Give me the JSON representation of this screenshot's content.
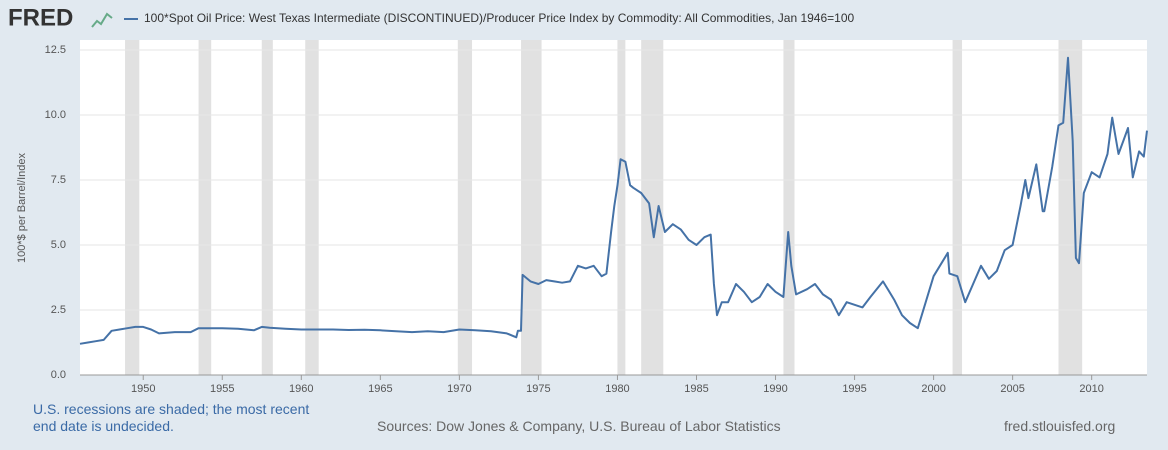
{
  "logo": "FRED",
  "chart_data": {
    "type": "line",
    "title": "100*Spot Oil Price: West Texas Intermediate (DISCONTINUED)/Producer Price Index by Commodity: All Commodities, Jan 1946=100",
    "y_label": "100*$ per Barrel/Index",
    "note": "U.S. recessions are shaded; the most recent end date is undecided.",
    "source": "Sources: Dow Jones & Company, U.S. Bureau of Labor Statistics",
    "site": "fred.stlouisfed.org",
    "xlim": [
      1946,
      2013.5
    ],
    "xticks": [
      1950,
      1955,
      1960,
      1965,
      1970,
      1975,
      1980,
      1985,
      1990,
      1995,
      2000,
      2005,
      2010
    ],
    "ylim": [
      0,
      12.5
    ],
    "yticks": [
      {
        "value": 0,
        "label": "0.0"
      },
      2.5,
      {
        "value": 5,
        "label": "5.0"
      },
      7.5,
      {
        "value": 10,
        "label": "10.0"
      },
      12.5
    ],
    "grid": true,
    "recessions": [
      [
        1948.85,
        1949.75
      ],
      [
        1953.5,
        1954.3
      ],
      [
        1957.5,
        1958.2
      ],
      [
        1960.25,
        1961.1
      ],
      [
        1969.9,
        1970.8
      ],
      [
        1973.9,
        1975.2
      ],
      [
        1980.0,
        1980.5
      ],
      [
        1981.5,
        1982.9
      ],
      [
        1990.5,
        1991.2
      ],
      [
        2001.2,
        2001.8
      ],
      [
        2007.9,
        2009.4
      ]
    ],
    "recession_color": "#e1e1e1",
    "series": [
      {
        "name": "100*Spot Oil Price: West Texas Intermediate (DISCONTINUED)/Producer Price Index by Commodity: All Commodities, Jan 1946=100",
        "color": "#4572a7",
        "x": [
          1946.0,
          1946.5,
          1947.0,
          1947.5,
          1948.0,
          1948.5,
          1949.0,
          1949.5,
          1950.0,
          1950.5,
          1951.0,
          1952.0,
          1953.0,
          1953.5,
          1954.0,
          1955.0,
          1956.0,
          1957.0,
          1957.5,
          1958.0,
          1959.0,
          1960.0,
          1961.0,
          1962.0,
          1963.0,
          1964.0,
          1965.0,
          1966.0,
          1967.0,
          1968.0,
          1969.0,
          1970.0,
          1971.0,
          1972.0,
          1973.0,
          1973.6,
          1973.7,
          1973.9,
          1974.0,
          1974.5,
          1975.0,
          1975.5,
          1976.0,
          1976.5,
          1977.0,
          1977.5,
          1978.0,
          1978.5,
          1979.0,
          1979.3,
          1979.6,
          1979.8,
          1980.0,
          1980.2,
          1980.5,
          1980.8,
          1981.0,
          1981.5,
          1982.0,
          1982.3,
          1982.6,
          1983.0,
          1983.5,
          1984.0,
          1984.5,
          1985.0,
          1985.5,
          1985.9,
          1986.1,
          1986.3,
          1986.6,
          1987.0,
          1987.5,
          1988.0,
          1988.5,
          1989.0,
          1989.5,
          1990.0,
          1990.5,
          1990.8,
          1991.0,
          1991.3,
          1992.0,
          1992.5,
          1993.0,
          1993.5,
          1994.0,
          1994.5,
          1995.0,
          1995.5,
          1996.0,
          1996.8,
          1997.0,
          1997.5,
          1998.0,
          1998.5,
          1999.0,
          1999.5,
          2000.0,
          2000.5,
          2000.9,
          2001.0,
          2001.5,
          2002.0,
          2002.5,
          2003.0,
          2003.5,
          2004.0,
          2004.5,
          2005.0,
          2005.5,
          2005.8,
          2006.0,
          2006.5,
          2006.9,
          2007.0,
          2007.5,
          2007.9,
          2008.2,
          2008.5,
          2008.8,
          2009.0,
          2009.2,
          2009.5,
          2010.0,
          2010.5,
          2011.0,
          2011.3,
          2011.7,
          2012.0,
          2012.3,
          2012.6,
          2013.0,
          2013.3,
          2013.5
        ],
        "values": [
          1.2,
          1.25,
          1.3,
          1.35,
          1.7,
          1.75,
          1.8,
          1.85,
          1.85,
          1.75,
          1.6,
          1.65,
          1.65,
          1.8,
          1.8,
          1.8,
          1.78,
          1.72,
          1.85,
          1.82,
          1.78,
          1.75,
          1.75,
          1.75,
          1.73,
          1.74,
          1.72,
          1.68,
          1.65,
          1.68,
          1.65,
          1.75,
          1.72,
          1.68,
          1.6,
          1.45,
          1.7,
          1.7,
          3.85,
          3.6,
          3.5,
          3.65,
          3.6,
          3.55,
          3.6,
          4.2,
          4.1,
          4.2,
          3.8,
          3.9,
          5.5,
          6.5,
          7.3,
          8.3,
          8.2,
          7.3,
          7.2,
          7.0,
          6.6,
          5.3,
          6.5,
          5.5,
          5.8,
          5.6,
          5.2,
          5.0,
          5.3,
          5.4,
          3.5,
          2.3,
          2.8,
          2.8,
          3.5,
          3.2,
          2.8,
          3.0,
          3.5,
          3.2,
          3.0,
          5.5,
          4.2,
          3.1,
          3.3,
          3.5,
          3.1,
          2.9,
          2.3,
          2.8,
          2.7,
          2.6,
          3.0,
          3.6,
          3.4,
          2.9,
          2.3,
          2.0,
          1.8,
          2.8,
          3.8,
          4.3,
          4.7,
          3.9,
          3.8,
          2.8,
          3.5,
          4.2,
          3.7,
          4.0,
          4.8,
          5.0,
          6.5,
          7.5,
          6.8,
          8.1,
          6.3,
          6.3,
          8.0,
          9.6,
          9.7,
          12.2,
          9.0,
          4.5,
          4.3,
          7.0,
          7.8,
          7.6,
          8.5,
          9.9,
          8.5,
          9.0,
          9.5,
          7.6,
          8.6,
          8.4,
          9.4
        ]
      }
    ]
  }
}
